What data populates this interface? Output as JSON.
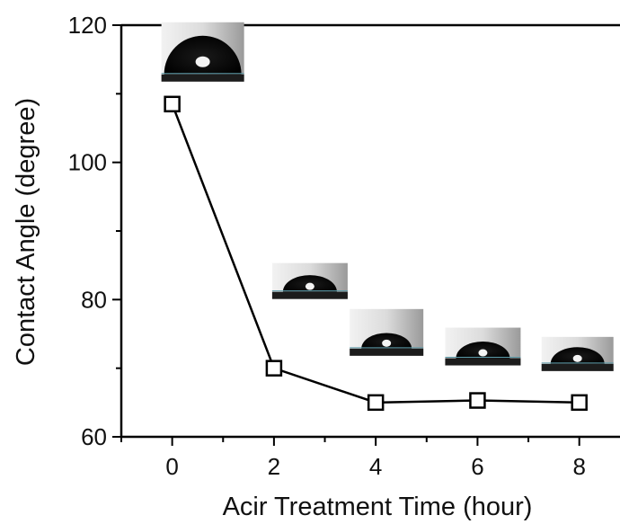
{
  "chart_data": {
    "type": "line",
    "x": [
      0,
      2,
      4,
      6,
      8
    ],
    "series": [
      {
        "values": [
          108.5,
          70,
          65,
          65.3,
          65
        ],
        "color": "#000000",
        "marker": "open-square"
      }
    ],
    "xlabel": "Acir Treatment Time (hour)",
    "ylabel": "Contact Angle (degree)",
    "xlim": [
      -1,
      8.8
    ],
    "ylim": [
      60,
      120
    ],
    "xticks": [
      "0",
      "2",
      "4",
      "6",
      "8"
    ],
    "yticks": [
      "60",
      "80",
      "100",
      "120"
    ],
    "grid": false,
    "insets": "droplet photo above each data point"
  }
}
